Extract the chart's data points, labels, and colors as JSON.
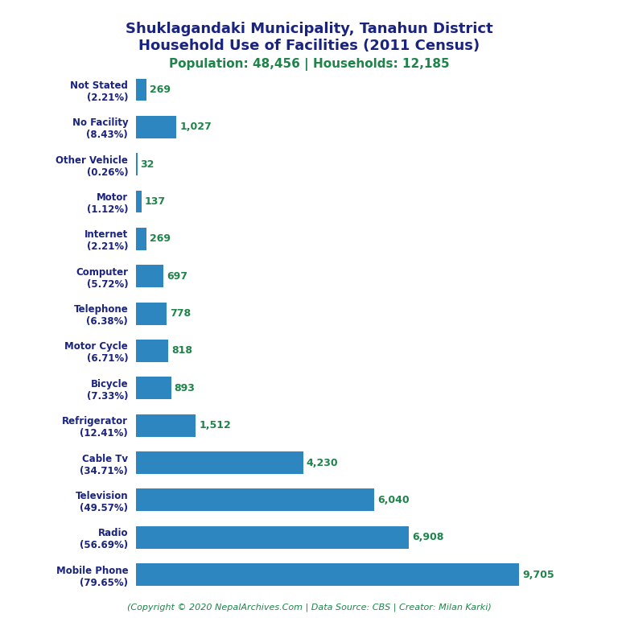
{
  "title_line1": "Shuklagandaki Municipality, Tanahun District",
  "title_line2": "Household Use of Facilities (2011 Census)",
  "subtitle": "Population: 48,456 | Households: 12,185",
  "footer": "(Copyright © 2020 NepalArchives.Com | Data Source: CBS | Creator: Milan Karki)",
  "categories": [
    "Mobile Phone\n(79.65%)",
    "Radio\n(56.69%)",
    "Television\n(49.57%)",
    "Cable Tv\n(34.71%)",
    "Refrigerator\n(12.41%)",
    "Bicycle\n(7.33%)",
    "Motor Cycle\n(6.71%)",
    "Telephone\n(6.38%)",
    "Computer\n(5.72%)",
    "Internet\n(2.21%)",
    "Motor\n(1.12%)",
    "Other Vehicle\n(0.26%)",
    "No Facility\n(8.43%)",
    "Not Stated\n(2.21%)"
  ],
  "values": [
    9705,
    6908,
    6040,
    4230,
    1512,
    893,
    818,
    778,
    697,
    269,
    137,
    32,
    1027,
    269
  ],
  "bar_color": "#2e86c1",
  "value_color": "#1e8449",
  "title_color": "#1a237e",
  "subtitle_color": "#1e8449",
  "footer_color": "#1e8449",
  "background_color": "#ffffff",
  "xlim": [
    0,
    10800
  ]
}
